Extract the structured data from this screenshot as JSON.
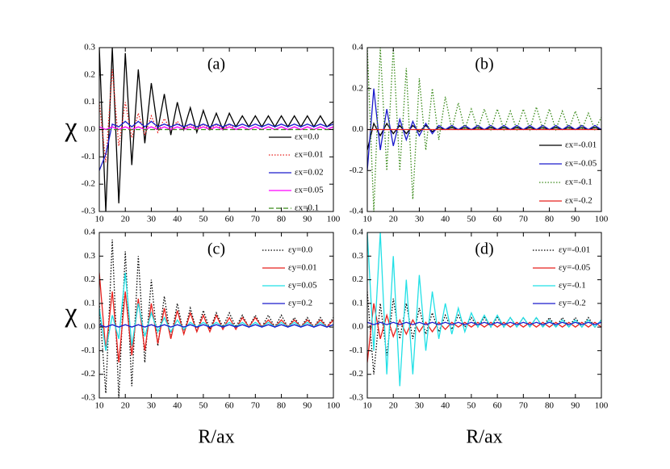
{
  "chart_data": [
    {
      "type": "line",
      "annotation": "(a)",
      "ylabel": "χ",
      "x": [
        10,
        12.5,
        15,
        17.5,
        20,
        22.5,
        25,
        27.5,
        30,
        32.5,
        35,
        37.5,
        40,
        42.5,
        45,
        47.5,
        50,
        52.5,
        55,
        57.5,
        60,
        62.5,
        65,
        67.5,
        70,
        72.5,
        75,
        77.5,
        80,
        82.5,
        85,
        87.5,
        90,
        92.5,
        95,
        97.5,
        100
      ],
      "xlim": [
        10,
        100
      ],
      "xticks": [
        10,
        20,
        30,
        40,
        50,
        60,
        70,
        80,
        90,
        100
      ],
      "ylim": [
        -0.3,
        0.3
      ],
      "yticks": [
        -0.3,
        -0.2,
        -0.1,
        {
          "value": 0,
          "label": "0.0"
        },
        0.1,
        0.2,
        0.3
      ],
      "series": [
        {
          "name": "εx=0.0",
          "color": "#000000",
          "style": "solid",
          "values": [
            0.3,
            -0.3,
            0.3,
            -0.27,
            0.28,
            -0.13,
            0.22,
            -0.05,
            0.17,
            0,
            0.13,
            -0.02,
            0.1,
            0,
            0.08,
            -0.01,
            0.07,
            0,
            0.06,
            0,
            0.06,
            0.01,
            0.05,
            0.01,
            0.05,
            0.01,
            0.05,
            0.01,
            0.05,
            0.01,
            0.05,
            0.01,
            0.05,
            0.01,
            0.05,
            0.01,
            0.03
          ]
        },
        {
          "name": "εx=0.01",
          "color": "#e8211d",
          "style": "dotted",
          "values": [
            0.1,
            -0.12,
            0.22,
            -0.06,
            0.1,
            -0.03,
            0.06,
            -0.02,
            0.05,
            -0.01,
            0.04,
            0,
            0.03,
            0,
            0.02,
            0,
            0.02,
            0,
            0.02,
            0,
            0.02,
            0,
            0.01,
            0,
            0.01,
            0,
            0.01,
            0,
            0.01,
            0,
            0.01,
            0,
            0.01,
            0,
            0.01,
            0,
            0.01
          ]
        },
        {
          "name": "εx=0.02",
          "color": "#1a1acc",
          "style": "solid",
          "values": [
            -0.15,
            -0.09,
            0.02,
            0.01,
            0.03,
            0.01,
            0.03,
            0.01,
            0.03,
            0.01,
            0.02,
            0.01,
            0.02,
            0.01,
            0.02,
            0.01,
            0.02,
            0.01,
            0.02,
            0.01,
            0.02,
            0.01,
            0.02,
            0.01,
            0.02,
            0.01,
            0.02,
            0.01,
            0.02,
            0.01,
            0.02,
            0.01,
            0.02,
            0.01,
            0.02,
            0.01,
            0.02
          ]
        },
        {
          "name": "εx=0.05",
          "color": "#ff00ff",
          "style": "solid",
          "values": [
            0.01,
            0,
            0.01,
            0,
            0.01,
            0,
            0.01,
            0,
            0.01,
            0,
            0.01,
            0,
            0.01,
            0,
            0.01,
            0,
            0.01,
            0,
            0.01,
            0,
            0.01,
            0,
            0.01,
            0,
            0.01,
            0,
            0.01,
            0,
            0.01,
            0,
            0.01,
            0,
            0.01,
            0,
            0.01,
            0,
            0.01
          ]
        },
        {
          "name": "εx=0.1",
          "color": "#3a8a1a",
          "style": "dashed",
          "values": [
            0,
            0,
            0,
            0,
            0,
            0,
            0,
            0,
            0,
            0,
            0,
            0,
            0,
            0,
            0,
            0,
            0,
            0,
            0,
            0,
            0,
            0,
            0,
            0,
            0,
            0,
            0,
            0,
            0,
            0,
            0,
            0,
            0,
            0,
            0,
            0,
            0
          ]
        }
      ]
    },
    {
      "type": "line",
      "annotation": "(b)",
      "x": [
        10,
        12.5,
        15,
        17.5,
        20,
        22.5,
        25,
        27.5,
        30,
        32.5,
        35,
        37.5,
        40,
        42.5,
        45,
        47.5,
        50,
        52.5,
        55,
        57.5,
        60,
        62.5,
        65,
        67.5,
        70,
        72.5,
        75,
        77.5,
        80,
        82.5,
        85,
        87.5,
        90,
        92.5,
        95,
        97.5,
        100
      ],
      "xlim": [
        10,
        100
      ],
      "xticks": [
        10,
        20,
        30,
        40,
        50,
        60,
        70,
        80,
        90,
        100
      ],
      "ylim": [
        -0.4,
        0.4
      ],
      "yticks": [
        -0.4,
        -0.2,
        {
          "value": 0,
          "label": "0.0"
        },
        0.2,
        0.4
      ],
      "series": [
        {
          "name": "εx=-0.01",
          "color": "#000000",
          "style": "solid",
          "values": [
            -0.1,
            0.03,
            -0.03,
            0.03,
            -0.02,
            0.02,
            -0.02,
            0.02,
            -0.01,
            0.02,
            -0.01,
            0.01,
            0,
            0.01,
            0,
            0.01,
            0,
            0.01,
            0,
            0.01,
            0,
            0.01,
            0,
            0.01,
            0,
            0.01,
            0,
            0.01,
            0,
            0.01,
            0,
            0.01,
            0,
            0.01,
            0,
            0.01,
            0
          ]
        },
        {
          "name": "εx=-0.05",
          "color": "#1a1acc",
          "style": "solid",
          "values": [
            -0.2,
            0.2,
            -0.1,
            0.1,
            -0.08,
            0.05,
            -0.05,
            0.04,
            -0.03,
            0.03,
            -0.02,
            0.02,
            0,
            0.02,
            0,
            0.02,
            0,
            0.02,
            0,
            0.02,
            0,
            0.02,
            0,
            0.02,
            0,
            0.02,
            0,
            0.02,
            0,
            0.02,
            0,
            0.02,
            0,
            0.02,
            0,
            0.02,
            0
          ]
        },
        {
          "name": "εx=-0.1",
          "color": "#3a8a1a",
          "style": "dotted",
          "values": [
            0.4,
            -0.4,
            0.4,
            -0.2,
            0.4,
            -0.2,
            0.3,
            -0.34,
            0.25,
            -0.1,
            0.2,
            -0.05,
            0.16,
            0,
            0.13,
            0,
            0.1,
            0,
            0.1,
            0,
            0.1,
            0,
            0.09,
            0,
            0.1,
            0,
            0.11,
            0,
            0.1,
            0,
            0.09,
            0,
            0.09,
            0,
            0.08,
            0,
            0.06
          ]
        },
        {
          "name": "εx=-0.2",
          "color": "#e8211d",
          "style": "solid",
          "values": [
            0,
            0,
            0,
            0,
            0,
            0,
            0,
            0,
            0,
            0,
            0,
            0,
            0,
            0,
            0,
            0,
            0,
            0,
            0,
            0,
            0,
            0,
            0,
            0,
            0,
            0,
            0,
            0,
            0,
            0,
            0,
            0,
            0,
            0,
            0,
            0,
            0
          ]
        }
      ]
    },
    {
      "type": "line",
      "annotation": "(c)",
      "ylabel": "χ",
      "xlabel": "R/ax",
      "x": [
        10,
        12.5,
        15,
        17.5,
        20,
        22.5,
        25,
        27.5,
        30,
        32.5,
        35,
        37.5,
        40,
        42.5,
        45,
        47.5,
        50,
        52.5,
        55,
        57.5,
        60,
        62.5,
        65,
        67.5,
        70,
        72.5,
        75,
        77.5,
        80,
        82.5,
        85,
        87.5,
        90,
        92.5,
        95,
        97.5,
        100
      ],
      "xlim": [
        10,
        100
      ],
      "xticks": [
        10,
        20,
        30,
        40,
        50,
        60,
        70,
        80,
        90,
        100
      ],
      "ylim": [
        -0.3,
        0.4
      ],
      "yticks": [
        -0.3,
        -0.2,
        -0.1,
        {
          "value": 0,
          "label": "0.0"
        },
        0.1,
        0.2,
        0.3,
        0.4
      ],
      "series": [
        {
          "name": "εy=0.0",
          "color": "#000000",
          "style": "dotted",
          "values": [
            0.1,
            -0.28,
            0.37,
            -0.3,
            0.32,
            -0.25,
            0.3,
            -0.15,
            0.2,
            -0.08,
            0.13,
            -0.05,
            0.1,
            -0.03,
            0.08,
            -0.02,
            0.07,
            -0.01,
            0.06,
            0,
            0.06,
            0,
            0.05,
            0,
            0.05,
            0,
            0.05,
            0,
            0.05,
            0,
            0.04,
            0,
            0.04,
            0,
            0.04,
            0,
            0.04
          ]
        },
        {
          "name": "εy=0.01",
          "color": "#e8211d",
          "style": "solid",
          "values": [
            0.23,
            -0.1,
            0.15,
            -0.15,
            0.15,
            -0.12,
            0.12,
            -0.1,
            0.1,
            -0.07,
            0.08,
            -0.05,
            0.07,
            -0.03,
            0.06,
            -0.02,
            0.05,
            -0.02,
            0.05,
            -0.01,
            0.04,
            -0.01,
            0.04,
            0,
            0.04,
            0,
            0.03,
            0,
            0.03,
            0,
            0.03,
            0,
            0.03,
            0,
            0.03,
            0,
            0.03
          ]
        },
        {
          "name": "εy=0.05",
          "color": "#22e0e6",
          "style": "solid",
          "values": [
            0.08,
            -0.1,
            0.05,
            -0.05,
            0.23,
            -0.08,
            0.1,
            -0.04,
            0.06,
            -0.02,
            0.04,
            -0.02,
            0.03,
            -0.01,
            0.02,
            0,
            0.02,
            0,
            0.02,
            0,
            0.02,
            0,
            0.02,
            0,
            0.02,
            0,
            0.02,
            0,
            0.02,
            0,
            0.02,
            0,
            0.02,
            0,
            0.02,
            0,
            0.01
          ]
        },
        {
          "name": "εy=0.2",
          "color": "#1a1acc",
          "style": "solid",
          "values": [
            0.01,
            0,
            0.01,
            0,
            0.01,
            0,
            0.01,
            0,
            0.01,
            0,
            0.01,
            0,
            0.01,
            0,
            0.01,
            0,
            0.01,
            0,
            0.01,
            0,
            0.01,
            0,
            0.01,
            0,
            0.01,
            0,
            0.01,
            0,
            0.01,
            0,
            0.01,
            0,
            0.01,
            0,
            0.01,
            0,
            0.01
          ]
        }
      ]
    },
    {
      "type": "line",
      "annotation": "(d)",
      "xlabel": "R/ax",
      "x": [
        10,
        12.5,
        15,
        17.5,
        20,
        22.5,
        25,
        27.5,
        30,
        32.5,
        35,
        37.5,
        40,
        42.5,
        45,
        47.5,
        50,
        52.5,
        55,
        57.5,
        60,
        62.5,
        65,
        67.5,
        70,
        72.5,
        75,
        77.5,
        80,
        82.5,
        85,
        87.5,
        90,
        92.5,
        95,
        97.5,
        100
      ],
      "xlim": [
        10,
        100
      ],
      "xticks": [
        10,
        20,
        30,
        40,
        50,
        60,
        70,
        80,
        90,
        100
      ],
      "ylim": [
        -0.3,
        0.4
      ],
      "yticks": [
        -0.3,
        -0.2,
        -0.1,
        {
          "value": 0,
          "label": "0.0"
        },
        0.1,
        0.2,
        0.3,
        0.4
      ],
      "series": [
        {
          "name": "εy=-0.01",
          "color": "#000000",
          "style": "dotted",
          "values": [
            0.15,
            -0.2,
            0.1,
            -0.12,
            0.12,
            -0.05,
            0.1,
            -0.05,
            0.08,
            -0.03,
            0.06,
            -0.02,
            0.05,
            -0.01,
            0.05,
            0,
            0.04,
            0,
            0.04,
            0,
            0.04,
            0,
            0.04,
            0,
            0.04,
            0,
            0.04,
            0,
            0.04,
            0,
            0.04,
            0,
            0.04,
            0,
            0.04,
            0,
            0.03
          ]
        },
        {
          "name": "εy=-0.05",
          "color": "#e8211d",
          "style": "solid",
          "values": [
            -0.15,
            0.1,
            -0.05,
            0.05,
            -0.04,
            0.03,
            -0.03,
            0.03,
            -0.02,
            0.02,
            -0.02,
            0.02,
            -0.01,
            0.02,
            0,
            0.02,
            0,
            0.02,
            0,
            0.02,
            0,
            0.02,
            0,
            0.02,
            0,
            0.02,
            0,
            0.02,
            0,
            0.02,
            0,
            0.02,
            0,
            0.02,
            0,
            0.02,
            0
          ]
        },
        {
          "name": "εy=-0.1",
          "color": "#22e0e6",
          "style": "solid",
          "values": [
            0.4,
            -0.1,
            0.4,
            -0.2,
            0.3,
            -0.25,
            0.2,
            -0.2,
            0.22,
            -0.1,
            0.15,
            -0.05,
            0.1,
            -0.03,
            0.08,
            -0.02,
            0.06,
            0,
            0.05,
            0,
            0.05,
            0,
            0.04,
            0,
            0.04,
            0,
            0.04,
            0,
            0.03,
            0,
            0.03,
            0,
            0.03,
            0,
            0.03,
            0,
            0.03
          ]
        },
        {
          "name": "εy=-0.2",
          "color": "#1a1acc",
          "style": "solid",
          "values": [
            0.02,
            0.01,
            0.02,
            0.01,
            0.02,
            0.01,
            0.02,
            0.01,
            0.02,
            0.01,
            0.02,
            0.01,
            0.02,
            0.01,
            0.02,
            0.01,
            0.02,
            0.01,
            0.02,
            0.01,
            0.02,
            0.01,
            0.02,
            0.01,
            0.02,
            0.01,
            0.02,
            0.01,
            0.02,
            0.01,
            0.02,
            0.01,
            0.02,
            0.01,
            0.02,
            0.01,
            0.02
          ]
        }
      ]
    }
  ]
}
